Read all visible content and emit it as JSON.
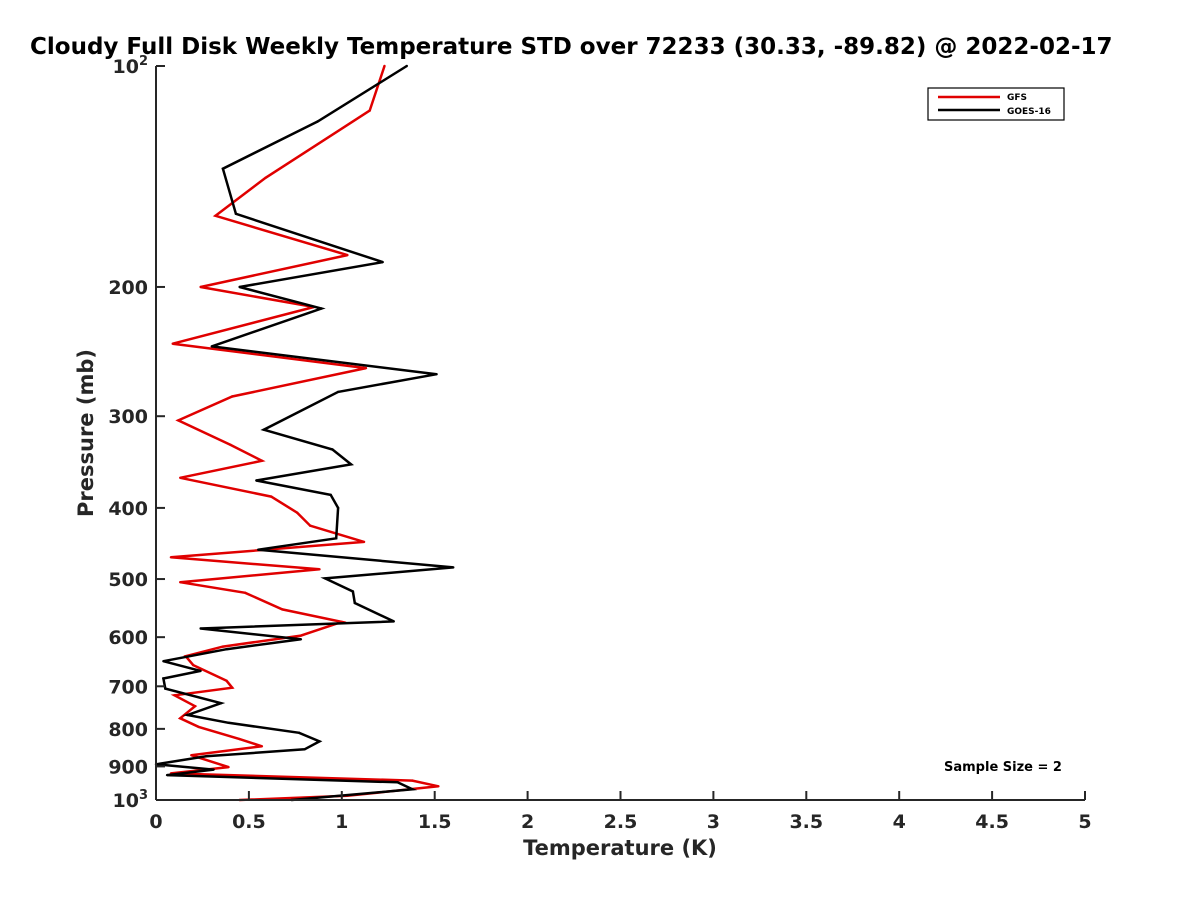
{
  "chart_data": {
    "type": "line",
    "title": "Cloudy Full Disk Weekly Temperature STD over 72233 (30.33, -89.82) @ 2022-02-17",
    "xlabel": "Temperature (K)",
    "ylabel": "Pressure (mb)",
    "xlim": [
      0,
      5
    ],
    "ylim": [
      100,
      1000
    ],
    "yscale": "log",
    "yreversed": true,
    "x_ticks": [
      0,
      0.5,
      1,
      1.5,
      2,
      2.5,
      3,
      3.5,
      4,
      4.5,
      5
    ],
    "x_tick_labels": [
      "0",
      "0.5",
      "1",
      "1.5",
      "2",
      "2.5",
      "3",
      "3.5",
      "4",
      "4.5",
      "5"
    ],
    "y_ticks": [
      200,
      300,
      400,
      500,
      600,
      700,
      800,
      900
    ],
    "y_tick_labels": [
      "200",
      "300",
      "400",
      "500",
      "600",
      "700",
      "800",
      "900"
    ],
    "y_end_labels": [
      {
        "base": "10",
        "exp": "2",
        "value": 100
      },
      {
        "base": "10",
        "exp": "3",
        "value": 1000
      }
    ],
    "legend_position": "top-right",
    "annotation": "Sample Size = 2",
    "series": [
      {
        "name": "GFS",
        "color": "#e00000",
        "points": [
          [
            1.23,
            100
          ],
          [
            1.15,
            115
          ],
          [
            0.59,
            142
          ],
          [
            0.32,
            160
          ],
          [
            1.03,
            181
          ],
          [
            0.24,
            200
          ],
          [
            0.85,
            213
          ],
          [
            0.09,
            239
          ],
          [
            1.13,
            258
          ],
          [
            0.41,
            282
          ],
          [
            0.12,
            304
          ],
          [
            0.4,
            328
          ],
          [
            0.57,
            345
          ],
          [
            0.13,
            364
          ],
          [
            0.62,
            386
          ],
          [
            0.76,
            406
          ],
          [
            0.83,
            423
          ],
          [
            1.12,
            445
          ],
          [
            0.08,
            467
          ],
          [
            0.88,
            485
          ],
          [
            0.13,
            505
          ],
          [
            0.48,
            522
          ],
          [
            0.68,
            550
          ],
          [
            1.0,
            572
          ],
          [
            0.78,
            597
          ],
          [
            0.36,
            618
          ],
          [
            0.16,
            637
          ],
          [
            0.2,
            655
          ],
          [
            0.38,
            688
          ],
          [
            0.41,
            703
          ],
          [
            0.1,
            720
          ],
          [
            0.21,
            745
          ],
          [
            0.13,
            774
          ],
          [
            0.23,
            795
          ],
          [
            0.45,
            826
          ],
          [
            0.57,
            845
          ],
          [
            0.19,
            869
          ],
          [
            0.39,
            902
          ],
          [
            0.08,
            920
          ],
          [
            1.38,
            941
          ],
          [
            1.52,
            958
          ],
          [
            1.03,
            987
          ],
          [
            0.45,
            1000
          ]
        ]
      },
      {
        "name": "GOES-16",
        "color": "#000000",
        "points": [
          [
            1.35,
            100
          ],
          [
            0.87,
            119
          ],
          [
            0.36,
            138
          ],
          [
            0.43,
            159
          ],
          [
            1.22,
            185
          ],
          [
            0.45,
            200
          ],
          [
            0.89,
            214
          ],
          [
            0.3,
            241
          ],
          [
            1.51,
            263
          ],
          [
            0.98,
            278
          ],
          [
            0.58,
            313
          ],
          [
            0.95,
            333
          ],
          [
            1.05,
            349
          ],
          [
            0.54,
            367
          ],
          [
            0.94,
            384
          ],
          [
            0.98,
            400
          ],
          [
            0.97,
            440
          ],
          [
            0.55,
            456
          ],
          [
            1.6,
            482
          ],
          [
            0.91,
            499
          ],
          [
            1.06,
            520
          ],
          [
            1.07,
            539
          ],
          [
            1.28,
            571
          ],
          [
            0.24,
            584
          ],
          [
            0.78,
            604
          ],
          [
            0.38,
            623
          ],
          [
            0.04,
            647
          ],
          [
            0.24,
            667
          ],
          [
            0.04,
            683
          ],
          [
            0.05,
            705
          ],
          [
            0.35,
            738
          ],
          [
            0.17,
            766
          ],
          [
            0.39,
            785
          ],
          [
            0.77,
            810
          ],
          [
            0.88,
            832
          ],
          [
            0.8,
            853
          ],
          [
            0.27,
            872
          ],
          [
            0.0,
            894
          ],
          [
            0.31,
            909
          ],
          [
            0.06,
            925
          ],
          [
            1.3,
            946
          ],
          [
            1.38,
            967
          ],
          [
            0.73,
            1000
          ]
        ]
      }
    ]
  }
}
